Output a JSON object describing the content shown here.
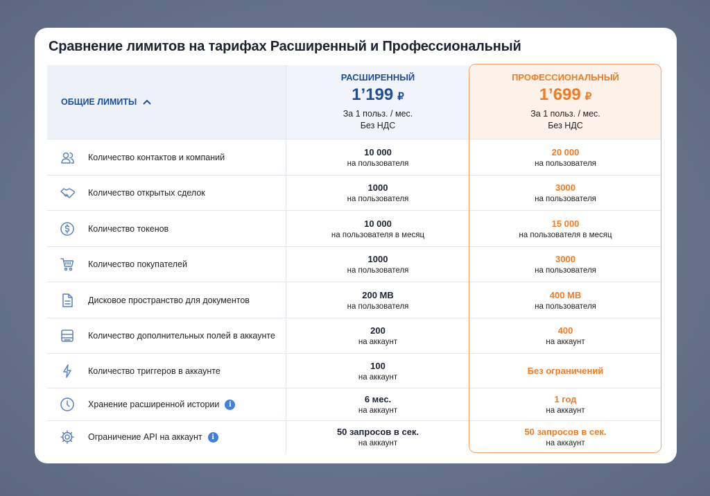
{
  "title": "Сравнение лимитов на тарифах Расширенный и Профессиональный",
  "header": {
    "section": "ОБЩИЕ ЛИМИТЫ",
    "plans": [
      {
        "name": "РАСШИРЕННЫЙ",
        "price": "1’199",
        "currency": "₽",
        "note1": "За 1 польз. / мес.",
        "note2": "Без НДС"
      },
      {
        "name": "ПРОФЕССИОНАЛЬНЫЙ",
        "price": "1’699",
        "currency": "₽",
        "note1": "За 1 польз. / мес.",
        "note2": "Без НДС"
      }
    ]
  },
  "rows": [
    {
      "label": "Количество контактов и компаний",
      "values": [
        {
          "main": "10 000",
          "sub": "на пользователя"
        },
        {
          "main": "20 000",
          "sub": "на пользователя"
        }
      ]
    },
    {
      "label": "Количество открытых сделок",
      "values": [
        {
          "main": "1000",
          "sub": "на пользователя"
        },
        {
          "main": "3000",
          "sub": "на пользователя"
        }
      ]
    },
    {
      "label": "Количество токенов",
      "values": [
        {
          "main": "10 000",
          "sub": "на пользователя в месяц"
        },
        {
          "main": "15 000",
          "sub": "на пользователя в месяц"
        }
      ]
    },
    {
      "label": "Количество покупателей",
      "values": [
        {
          "main": "1000",
          "sub": "на пользователя"
        },
        {
          "main": "3000",
          "sub": "на пользователя"
        }
      ]
    },
    {
      "label": "Дисковое пространство для документов",
      "values": [
        {
          "main": "200 MB",
          "sub": "на пользователя"
        },
        {
          "main": "400 MB",
          "sub": "на пользователя"
        }
      ]
    },
    {
      "label": "Количество дополнительных полей в аккаунте",
      "values": [
        {
          "main": "200",
          "sub": "на аккаунт"
        },
        {
          "main": "400",
          "sub": "на аккаунт"
        }
      ]
    },
    {
      "label": "Количество триггеров в аккаунте",
      "values": [
        {
          "main": "100",
          "sub": "на аккаунт"
        },
        {
          "main": "Без ограничений"
        }
      ]
    },
    {
      "label": "Хранение расширенной истории",
      "values": [
        {
          "main": "6 мес.",
          "sub": "на аккаунт"
        },
        {
          "main": "1 год",
          "sub": "на аккаунт"
        }
      ]
    },
    {
      "label": "Ограничение API на аккаунт",
      "values": [
        {
          "main": "50 запросов в сек.",
          "sub": "на аккаунт"
        },
        {
          "main": "50 запросов в сек.",
          "sub": "на аккаунт"
        }
      ]
    }
  ]
}
